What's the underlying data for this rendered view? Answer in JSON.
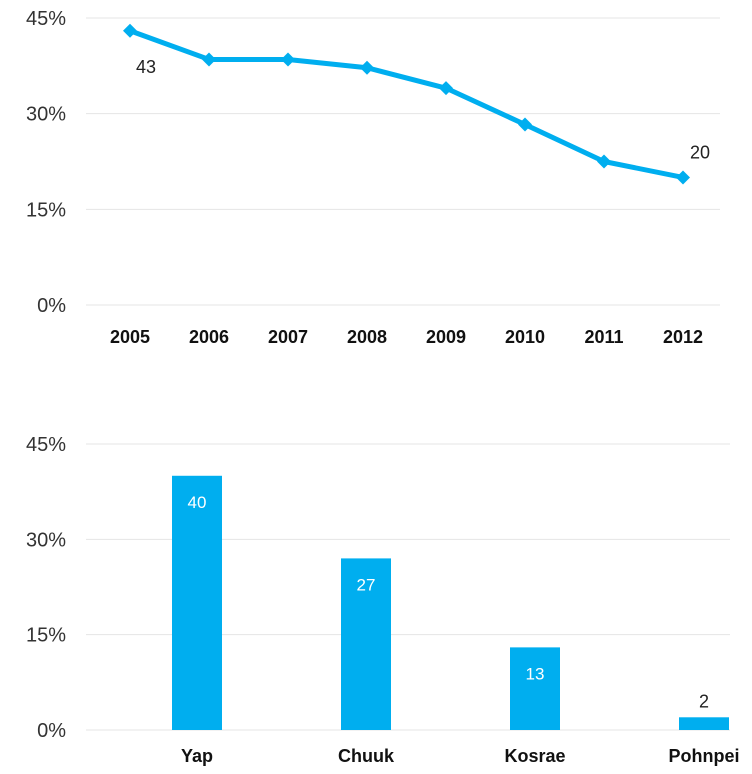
{
  "chart_data": [
    {
      "type": "line",
      "x": [
        "2005",
        "2006",
        "2007",
        "2008",
        "2009",
        "2010",
        "2011",
        "2012"
      ],
      "values": [
        43,
        38.5,
        38.5,
        37.2,
        34,
        28.3,
        22.5,
        20
      ],
      "data_labels": [
        {
          "index": 0,
          "text": "43"
        },
        {
          "index": 7,
          "text": "20"
        }
      ],
      "y_ticks": [
        "0%",
        "15%",
        "30%",
        "45%"
      ],
      "ylim": [
        0,
        45
      ],
      "grid": true,
      "color": "#00AEEF"
    },
    {
      "type": "bar",
      "categories": [
        "Yap",
        "Chuuk",
        "Kosrae",
        "Pohnpei"
      ],
      "values": [
        40,
        27,
        13,
        2
      ],
      "data_labels": [
        "40",
        "27",
        "13",
        "2"
      ],
      "y_ticks": [
        "0%",
        "15%",
        "30%",
        "45%"
      ],
      "ylim": [
        0,
        45
      ],
      "grid": true,
      "color": "#00AEEF"
    }
  ]
}
